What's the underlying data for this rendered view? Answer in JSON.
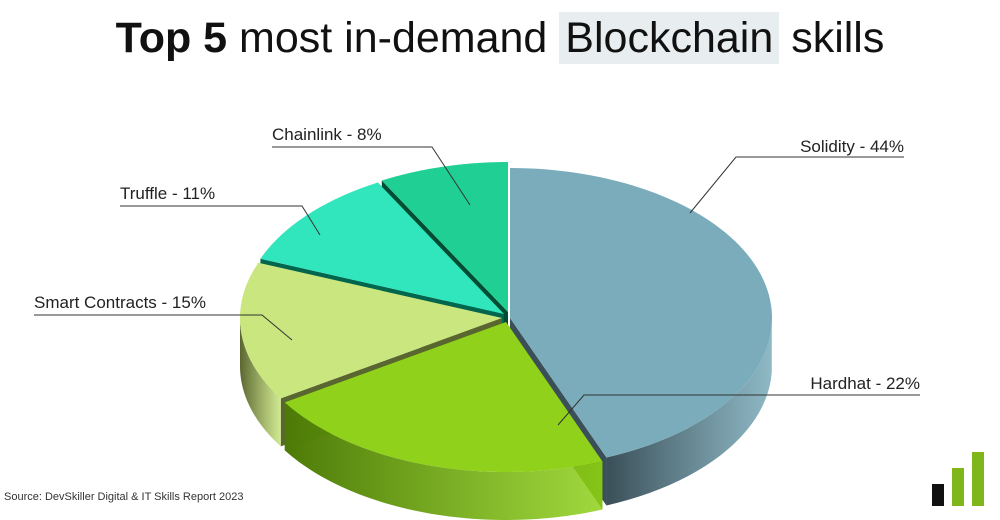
{
  "title": {
    "bold": "Top 5",
    "light": " most in-demand ",
    "highlight": "Blockchain",
    "end": " skills"
  },
  "source": "Source: DevSkiller Digital & IT Skills Report 2023",
  "chart_data": {
    "type": "pie",
    "title": "Top 5 most in-demand Blockchain skills",
    "style": "3d exploded pie",
    "slices": [
      {
        "name": "Solidity",
        "value": 44,
        "label": "Solidity - 44%",
        "top": "#7aacbb",
        "side": "#3a4f58"
      },
      {
        "name": "Hardhat",
        "value": 22,
        "label": "Hardhat - 22%",
        "top": "#8fd11b",
        "side": "#4d7a08"
      },
      {
        "name": "Smart Contracts",
        "value": 15,
        "label": "Smart Contracts - 15%",
        "top": "#c9e67f",
        "side": "#5a6630"
      },
      {
        "name": "Truffle",
        "value": 11,
        "label": "Truffle - 11%",
        "top": "#31e6bd",
        "side": "#00664d"
      },
      {
        "name": "Chainlink",
        "value": 8,
        "label": "Chainlink - 8%",
        "top": "#1fcf94",
        "side": "#004d33"
      }
    ]
  },
  "logo": {
    "colors": [
      "#111111",
      "#7fb61a",
      "#7fb61a"
    ]
  }
}
